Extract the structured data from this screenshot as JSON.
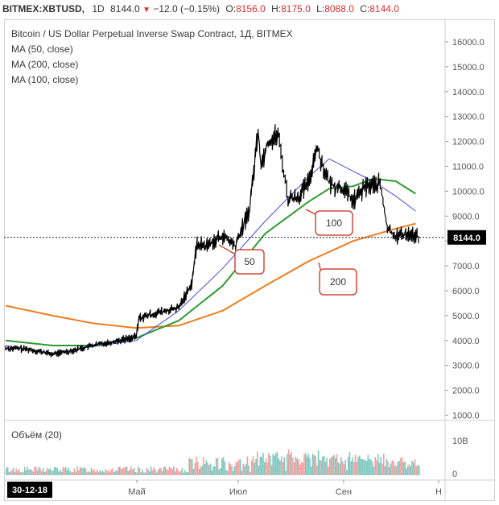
{
  "header": {
    "symbol": "BITMEX:XBTUSD,",
    "timeframe": "1D",
    "last": "8144.0",
    "change": "−12.0 (−0.15%)",
    "open_label": "O:",
    "open": "8156.0",
    "high_label": "H:",
    "high": "8175.0",
    "low_label": "L:",
    "low": "8088.0",
    "close_label": "C:",
    "close": "8144.0"
  },
  "legend": {
    "title": "Bitcoin / US Dollar Perpetual Inverse Swap Contract, 1Д, BITMEX",
    "ma50": "MA (50, close)",
    "ma200": "MA (200, close)",
    "ma100": "MA (100, close)"
  },
  "volume_label": "Объём (20)",
  "colors": {
    "price": "#000000",
    "ma50": "#4a4ad6",
    "ma100": "#2e9b32",
    "ma200": "#f07d1e",
    "vol_up": "#7fc8c0",
    "vol_down": "#f2a0a0",
    "callout_border": "#d24a3a"
  },
  "chart_data": {
    "type": "line",
    "title": "Bitcoin / US Dollar Perpetual Inverse Swap Contract, 1Д, BITMEX",
    "ylim": [
      1000,
      16000
    ],
    "y_ticks": [
      "16000.0",
      "15000.0",
      "14000.0",
      "13000.0",
      "12000.0",
      "11000.0",
      "10000.0",
      "9000.0",
      "8000.0",
      "7000.0",
      "6000.0",
      "5000.0",
      "4000.0",
      "3000.0",
      "2000.0",
      "1000.0"
    ],
    "x_ticks": [
      "Май",
      "Июл",
      "Сен",
      "Н"
    ],
    "start_date_label": "30-12-18",
    "last_price_label": "8144.0",
    "series": [
      {
        "name": "price",
        "x": [
          "2018-12-30",
          "2019-01-15",
          "2019-02-01",
          "2019-02-15",
          "2019-03-01",
          "2019-03-15",
          "2019-04-01",
          "2019-04-03",
          "2019-04-15",
          "2019-05-01",
          "2019-05-10",
          "2019-05-14",
          "2019-05-20",
          "2019-06-01",
          "2019-06-10",
          "2019-06-20",
          "2019-06-26",
          "2019-06-28",
          "2019-07-02",
          "2019-07-10",
          "2019-07-17",
          "2019-07-25",
          "2019-08-01",
          "2019-08-06",
          "2019-08-15",
          "2019-08-25",
          "2019-09-01",
          "2019-09-10",
          "2019-09-20",
          "2019-09-25",
          "2019-10-01",
          "2019-10-10",
          "2019-10-17"
        ],
        "values": [
          3700,
          3650,
          3450,
          3600,
          3800,
          3950,
          4150,
          4900,
          5100,
          5300,
          6300,
          7900,
          7800,
          8200,
          7800,
          9300,
          12500,
          11000,
          11900,
          12300,
          9700,
          9800,
          10400,
          11800,
          10300,
          10100,
          9600,
          10200,
          10300,
          8500,
          8200,
          8300,
          8144
        ]
      },
      {
        "name": "MA (50, close)",
        "x": [
          "2018-12-30",
          "2019-02-01",
          "2019-03-01",
          "2019-04-01",
          "2019-05-01",
          "2019-06-01",
          "2019-07-01",
          "2019-08-01",
          "2019-08-15",
          "2019-09-01",
          "2019-09-15",
          "2019-10-01",
          "2019-10-15"
        ],
        "values": [
          3800,
          3500,
          3750,
          4000,
          5200,
          6900,
          8800,
          10600,
          11300,
          10800,
          10400,
          9800,
          9200
        ]
      },
      {
        "name": "MA (100, close)",
        "x": [
          "2018-12-30",
          "2019-02-01",
          "2019-03-01",
          "2019-04-01",
          "2019-05-01",
          "2019-06-01",
          "2019-07-01",
          "2019-08-01",
          "2019-08-15",
          "2019-09-01",
          "2019-09-15",
          "2019-10-01",
          "2019-10-15"
        ],
        "values": [
          4000,
          3800,
          3800,
          4100,
          4800,
          6200,
          8300,
          9600,
          10100,
          10200,
          10500,
          10400,
          9900
        ]
      },
      {
        "name": "MA (200, close)",
        "x": [
          "2018-12-30",
          "2019-02-01",
          "2019-03-01",
          "2019-04-01",
          "2019-05-01",
          "2019-06-01",
          "2019-07-01",
          "2019-08-01",
          "2019-09-01",
          "2019-10-01",
          "2019-10-15"
        ],
        "values": [
          5400,
          5000,
          4700,
          4500,
          4600,
          5200,
          6200,
          7200,
          8000,
          8500,
          8700
        ]
      }
    ],
    "annotations": [
      "50",
      "100",
      "200"
    ],
    "volume": {
      "label": "Объём (20)",
      "ylabels": [
        "10B",
        "0"
      ]
    }
  }
}
